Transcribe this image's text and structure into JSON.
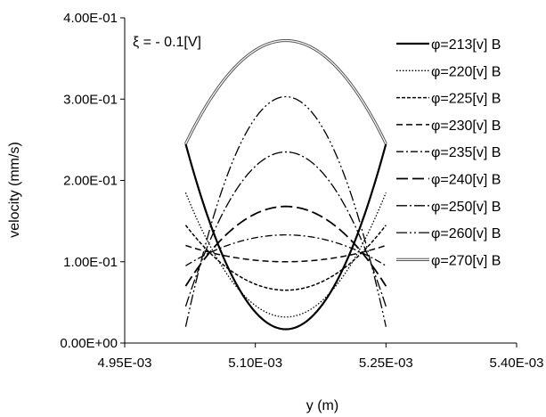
{
  "chart_data": {
    "type": "line",
    "title": "",
    "annotation": "ξ = - 0.1[V]",
    "xlabel": "y (m)",
    "ylabel": "velocity (mm/s)",
    "xlim": [
      0.00495,
      0.0054
    ],
    "ylim": [
      0,
      0.4
    ],
    "x_ticks": [
      0.00495,
      0.0051,
      0.00525,
      0.0054
    ],
    "x_tick_labels": [
      "4.95E-03",
      "5.10E-03",
      "5.25E-03",
      "5.40E-03"
    ],
    "y_ticks": [
      0,
      0.1,
      0.2,
      0.3,
      0.4
    ],
    "y_tick_labels": [
      "0.00E+00",
      "1.00E-01",
      "2.00E-01",
      "3.00E-01",
      "4.00E-01"
    ],
    "grid": false,
    "legend_position": "right",
    "x_range": [
      0.00502,
      0.00525
    ],
    "series": [
      {
        "name": "φ=213[v] B",
        "style": "solid-thick",
        "center": 0.017,
        "edge": 0.245
      },
      {
        "name": "φ=220[v] B",
        "style": "dotted",
        "center": 0.032,
        "edge": 0.185
      },
      {
        "name": "φ=225[v] B",
        "style": "dense-dash",
        "center": 0.065,
        "edge": 0.145
      },
      {
        "name": "φ=230[v] B",
        "style": "dash",
        "center": 0.1,
        "edge": 0.12
      },
      {
        "name": "φ=235[v] B",
        "style": "dash-dot",
        "center": 0.133,
        "edge": 0.095
      },
      {
        "name": "φ=240[v] B",
        "style": "long-dash",
        "center": 0.168,
        "edge": 0.07
      },
      {
        "name": "φ=250[v] B",
        "style": "long-dash-dot",
        "center": 0.235,
        "edge": 0.045
      },
      {
        "name": "φ=260[v] B",
        "style": "long-dash-dot-dot",
        "center": 0.303,
        "edge": 0.02
      },
      {
        "name": "φ=270[v] B",
        "style": "double",
        "center": 0.372,
        "edge": 0.245
      }
    ]
  }
}
